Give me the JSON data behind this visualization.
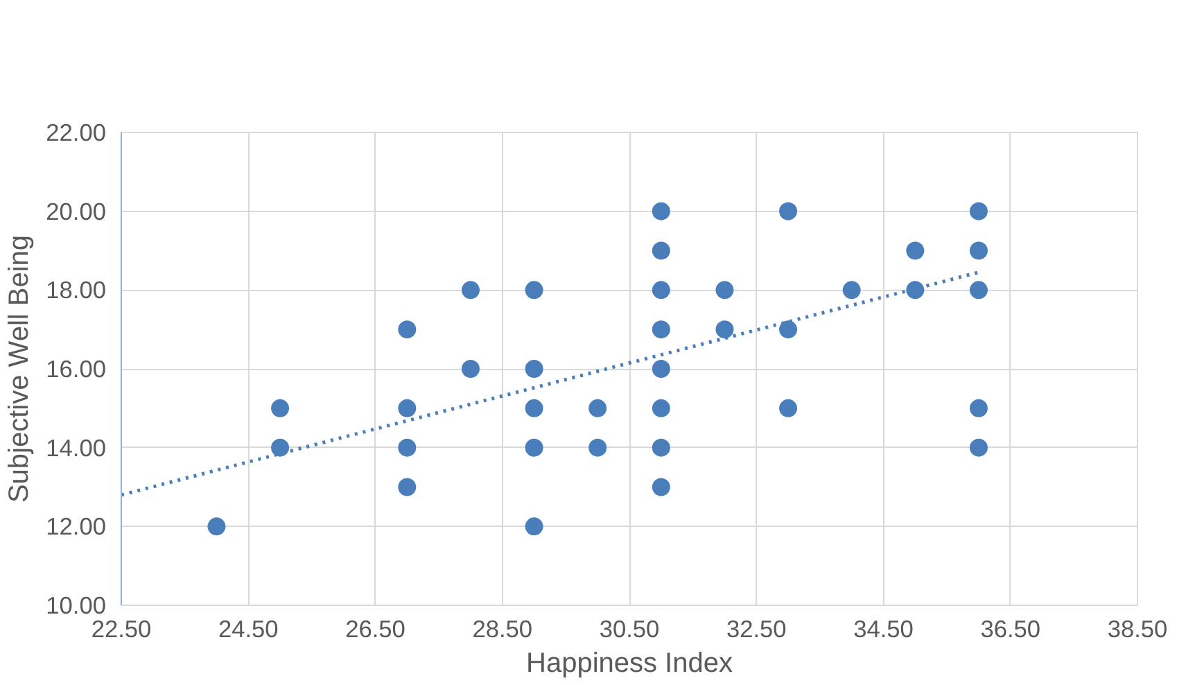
{
  "chart_data": {
    "type": "scatter",
    "xlabel": "Happiness Index",
    "ylabel": "Subjective Well Being",
    "marker": "circle",
    "grid": true,
    "xlim": [
      22.5,
      38.5
    ],
    "ylim": [
      10,
      22
    ],
    "xticks": [
      {
        "value": 22.5,
        "label": "22.50"
      },
      {
        "value": 24.5,
        "label": "24.50"
      },
      {
        "value": 26.5,
        "label": "26.50"
      },
      {
        "value": 28.5,
        "label": "28.50"
      },
      {
        "value": 30.5,
        "label": "30.50"
      },
      {
        "value": 32.5,
        "label": "32.50"
      },
      {
        "value": 34.5,
        "label": "34.50"
      },
      {
        "value": 36.5,
        "label": "36.50"
      },
      {
        "value": 38.5,
        "label": "38.50"
      }
    ],
    "yticks": [
      {
        "value": 10,
        "label": "10.00"
      },
      {
        "value": 12,
        "label": "12.00"
      },
      {
        "value": 14,
        "label": "14.00"
      },
      {
        "value": 16,
        "label": "16.00"
      },
      {
        "value": 18,
        "label": "18.00"
      },
      {
        "value": 20,
        "label": "20.00"
      },
      {
        "value": 22,
        "label": "22.00"
      }
    ],
    "series": [
      {
        "color": "#4a7ebb",
        "x": [
          24,
          25,
          25,
          27,
          27,
          27,
          27,
          28,
          28,
          29,
          29,
          29,
          29,
          29,
          30,
          30,
          31,
          31,
          31,
          31,
          31,
          31,
          31,
          31,
          32,
          32,
          33,
          33,
          33,
          34,
          35,
          35,
          36,
          36,
          36,
          36,
          36
        ],
        "values": [
          12,
          15,
          14,
          17,
          15,
          14,
          13,
          18,
          16,
          18,
          16,
          15,
          14,
          12,
          15,
          14,
          20,
          19,
          18,
          17,
          16,
          15,
          14,
          13,
          18,
          17,
          20,
          17,
          15,
          18,
          19,
          18,
          20,
          19,
          18,
          15,
          14
        ]
      },
      {
        "type": "line",
        "line_style": "dotted",
        "marker": "none",
        "color": "#4a7ebb",
        "x": [
          22.5,
          36
        ],
        "values": [
          12.8,
          18.45
        ]
      }
    ]
  }
}
